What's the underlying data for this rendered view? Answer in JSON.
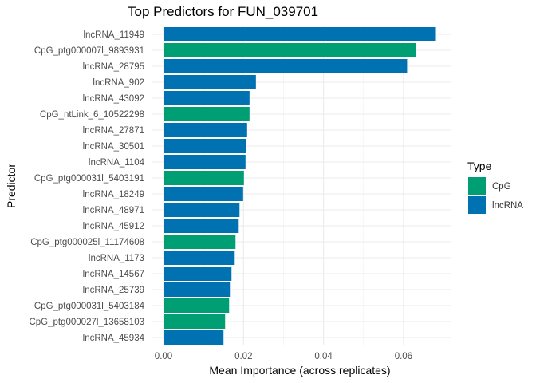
{
  "chart_data": {
    "type": "bar",
    "orientation": "horizontal",
    "title": "Top Predictors for FUN_039701",
    "xlabel": "Mean Importance (across replicates)",
    "ylabel": "Predictor",
    "xlim": [
      -0.003,
      0.071
    ],
    "xticks": [
      0.0,
      0.02,
      0.04,
      0.06
    ],
    "xtick_labels": [
      "0.00",
      "0.02",
      "0.04",
      "0.06"
    ],
    "grid": true,
    "legend": {
      "title": "Type",
      "position": "right",
      "entries": [
        {
          "name": "CpG",
          "color": "#009E73"
        },
        {
          "name": "lncRNA",
          "color": "#0072B2"
        }
      ]
    },
    "categories": [
      "lncRNA_11949",
      "CpG_ptg000007l_9893931",
      "lncRNA_28795",
      "lncRNA_902",
      "lncRNA_43092",
      "CpG_ntLink_6_10522298",
      "lncRNA_27871",
      "lncRNA_30501",
      "lncRNA_1104",
      "CpG_ptg000031l_5403191",
      "lncRNA_18249",
      "lncRNA_48971",
      "lncRNA_45912",
      "CpG_ptg000025l_11174608",
      "lncRNA_1173",
      "lncRNA_14567",
      "lncRNA_25739",
      "CpG_ptg000031l_5403184",
      "CpG_ptg000027l_13658103",
      "lncRNA_45934"
    ],
    "values": [
      0.0681,
      0.0631,
      0.0609,
      0.0231,
      0.0215,
      0.0215,
      0.0209,
      0.0207,
      0.0205,
      0.0201,
      0.0199,
      0.019,
      0.0188,
      0.018,
      0.0178,
      0.017,
      0.0166,
      0.0164,
      0.0154,
      0.015
    ],
    "types": [
      "lncRNA",
      "CpG",
      "lncRNA",
      "lncRNA",
      "lncRNA",
      "CpG",
      "lncRNA",
      "lncRNA",
      "lncRNA",
      "CpG",
      "lncRNA",
      "lncRNA",
      "lncRNA",
      "CpG",
      "lncRNA",
      "lncRNA",
      "lncRNA",
      "CpG",
      "CpG",
      "lncRNA"
    ]
  }
}
